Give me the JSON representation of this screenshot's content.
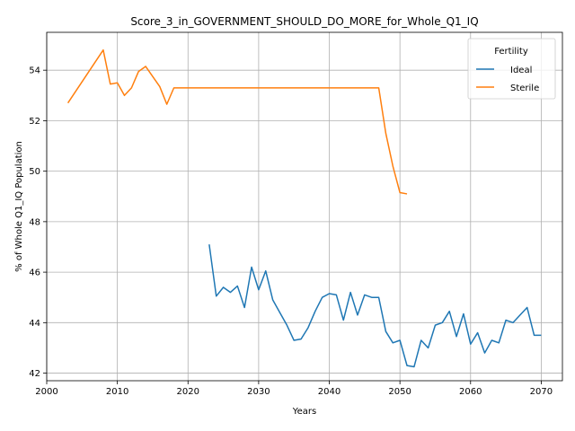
{
  "chart_data": {
    "type": "line",
    "title": "Score_3_in_GOVERNMENT_SHOULD_DO_MORE_for_Whole_Q1_IQ",
    "xlabel": "Years",
    "ylabel": "% of Whole Q1_IQ Population",
    "xlim": [
      2000,
      2073
    ],
    "ylim": [
      41.7,
      55.5
    ],
    "xticks": [
      2000,
      2010,
      2020,
      2030,
      2040,
      2050,
      2060,
      2070
    ],
    "yticks": [
      42,
      44,
      46,
      48,
      50,
      52,
      54
    ],
    "grid": true,
    "legend": {
      "title": "Fertility",
      "position": "top-right"
    },
    "series": [
      {
        "name": "Ideal",
        "color": "#1f77b4",
        "x": [
          2023,
          2024,
          2025,
          2026,
          2027,
          2028,
          2029,
          2030,
          2031,
          2032,
          2033,
          2034,
          2035,
          2036,
          2037,
          2038,
          2039,
          2040,
          2041,
          2042,
          2043,
          2044,
          2045,
          2046,
          2047,
          2048,
          2049,
          2050,
          2051,
          2052,
          2053,
          2054,
          2055,
          2056,
          2057,
          2058,
          2059,
          2060,
          2061,
          2062,
          2063,
          2064,
          2065,
          2066,
          2067,
          2068,
          2069,
          2070
        ],
        "y": [
          47.1,
          45.05,
          45.4,
          45.2,
          45.45,
          44.6,
          46.2,
          45.3,
          46.05,
          44.9,
          44.4,
          43.9,
          43.3,
          43.35,
          43.8,
          44.45,
          45.0,
          45.15,
          45.1,
          44.1,
          45.2,
          44.3,
          45.1,
          45.0,
          45.0,
          43.65,
          43.2,
          43.3,
          42.3,
          42.25,
          43.3,
          43.0,
          43.9,
          44.0,
          44.45,
          43.45,
          44.35,
          43.15,
          43.6,
          42.8,
          43.3,
          43.2,
          44.1,
          44.0,
          44.3,
          44.6,
          43.5,
          43.5
        ]
      },
      {
        "name": "Sterile",
        "color": "#ff7f0e",
        "x": [
          2003,
          2008,
          2009,
          2010,
          2011,
          2012,
          2013,
          2014,
          2016,
          2017,
          2018,
          2047,
          2048,
          2049,
          2050,
          2051
        ],
        "y": [
          52.7,
          54.8,
          53.45,
          53.5,
          53.0,
          53.3,
          53.95,
          54.15,
          53.35,
          52.65,
          53.3,
          53.3,
          51.5,
          50.2,
          49.15,
          49.1
        ]
      }
    ]
  }
}
